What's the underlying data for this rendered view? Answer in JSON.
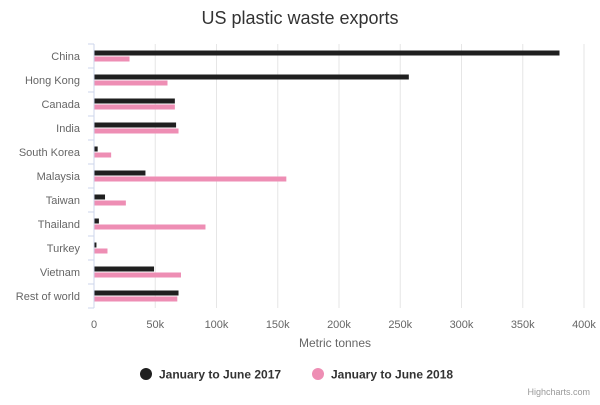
{
  "chart_data": {
    "type": "bar",
    "orientation": "horizontal",
    "title": "US plastic waste exports",
    "xlabel": "Metric tonnes",
    "ylabel": "",
    "xlim": [
      0,
      400000
    ],
    "x_ticks": [
      0,
      50000,
      100000,
      150000,
      200000,
      250000,
      300000,
      350000,
      400000
    ],
    "x_tick_labels": [
      "0",
      "50k",
      "100k",
      "150k",
      "200k",
      "250k",
      "300k",
      "350k",
      "400k"
    ],
    "grid": "vertical",
    "legend_position": "bottom-center",
    "categories": [
      "China",
      "Hong Kong",
      "Canada",
      "India",
      "South Korea",
      "Malaysia",
      "Taiwan",
      "Thailand",
      "Turkey",
      "Vietnam",
      "Rest of world"
    ],
    "series": [
      {
        "name": "January to June 2017",
        "color": "#1f1f1f",
        "values": [
          380000,
          257000,
          66000,
          67000,
          3000,
          42000,
          9000,
          4000,
          2000,
          49000,
          69000
        ]
      },
      {
        "name": "January to June 2018",
        "color": "#ee8eb4",
        "values": [
          29000,
          60000,
          66000,
          69000,
          14000,
          157000,
          26000,
          91000,
          11000,
          71000,
          68000
        ]
      }
    ]
  },
  "credits": "Highcharts.com",
  "colors": {
    "axis": "#ccd6eb",
    "grid": "#e6e6e6",
    "text": "#666666",
    "title": "#333333"
  }
}
